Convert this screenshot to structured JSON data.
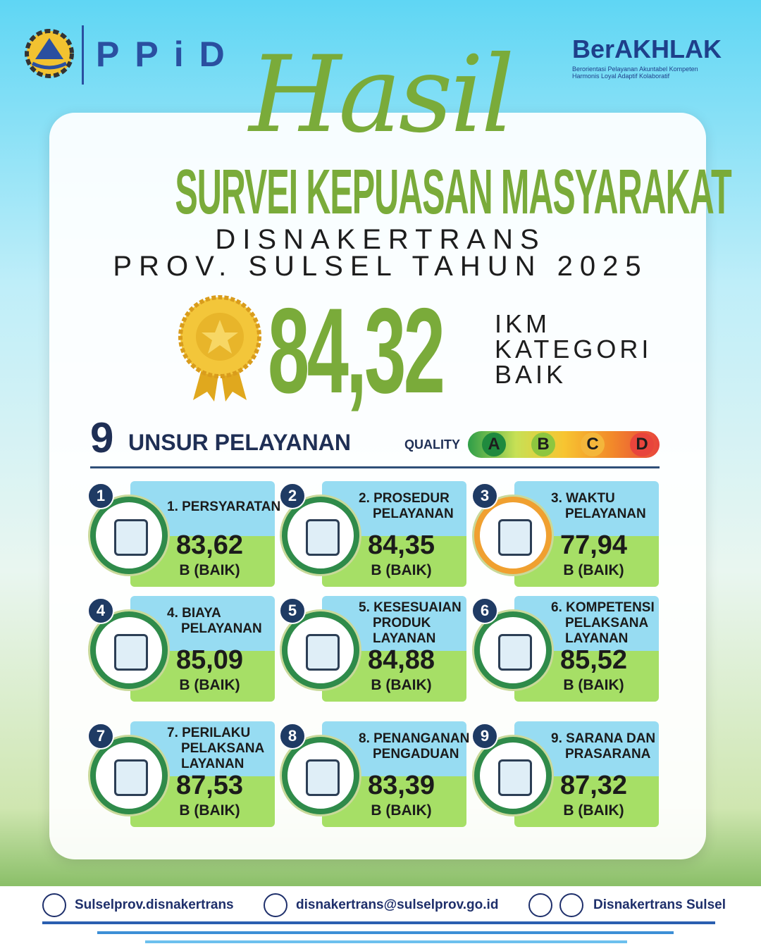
{
  "header": {
    "logo_text": "PPiD",
    "brand": "BerAKHLAK",
    "brand_tagline_1": "Berorientasi Pelayanan Akuntabel Kompeten",
    "brand_tagline_2": "Harmonis Loyal Adaptif Kolaboratif"
  },
  "title": {
    "script": "Hasil",
    "main": "SURVEI KEPUASAN MASYARAKAT",
    "line1": "DISNAKERTRANS",
    "line2": "PROV. SULSEL TAHUN 2025"
  },
  "score": {
    "value": "84,32",
    "label_lines": [
      "IKM",
      "KATEGORI",
      "BAIK"
    ]
  },
  "section": {
    "number": "9",
    "title": "UNSUR PELAYANAN",
    "quality_label": "QUALITY",
    "grades": [
      "A",
      "B",
      "C",
      "D"
    ]
  },
  "items": [
    {
      "badge": "1",
      "name_lines": [
        "1. PERSYARATAN"
      ],
      "score": "83,62",
      "category": "B (BAIK)"
    },
    {
      "badge": "2",
      "name_lines": [
        "2. PROSEDUR",
        "PELAYANAN"
      ],
      "score": "84,35",
      "category": "B (BAIK)"
    },
    {
      "badge": "3",
      "name_lines": [
        "3. WAKTU",
        "PELAYANAN"
      ],
      "score": "77,94",
      "category": "B (BAIK)"
    },
    {
      "badge": "4",
      "name_lines": [
        "4. BIAYA",
        "PELAYANAN"
      ],
      "score": "85,09",
      "category": "B (BAIK)"
    },
    {
      "badge": "5",
      "name_lines": [
        "5. KESESUAIAN",
        "PRODUK",
        "LAYANAN"
      ],
      "score": "84,88",
      "category": "B (BAIK)"
    },
    {
      "badge": "6",
      "name_lines": [
        "6. KOMPETENSI",
        "PELAKSANA",
        "LAYANAN"
      ],
      "score": "85,52",
      "category": "B (BAIK)"
    },
    {
      "badge": "7",
      "name_lines": [
        "7. PERILAKU",
        "PELAKSANA",
        "LAYANAN"
      ],
      "score": "87,53",
      "category": "B (BAIK)"
    },
    {
      "badge": "8",
      "name_lines": [
        "8. PENANGANAN",
        "PENGADUAN"
      ],
      "score": "83,39",
      "category": "B (BAIK)"
    },
    {
      "badge": "9",
      "name_lines": [
        "9. SARANA DAN",
        "PRASARANA"
      ],
      "score": "87,32",
      "category": "B (BAIK)"
    }
  ],
  "footer": {
    "instagram": "Sulselprov.disnakertrans",
    "email": "disnakertrans@sulselprov.go.id",
    "social": "Disnakertrans Sulsel"
  }
}
